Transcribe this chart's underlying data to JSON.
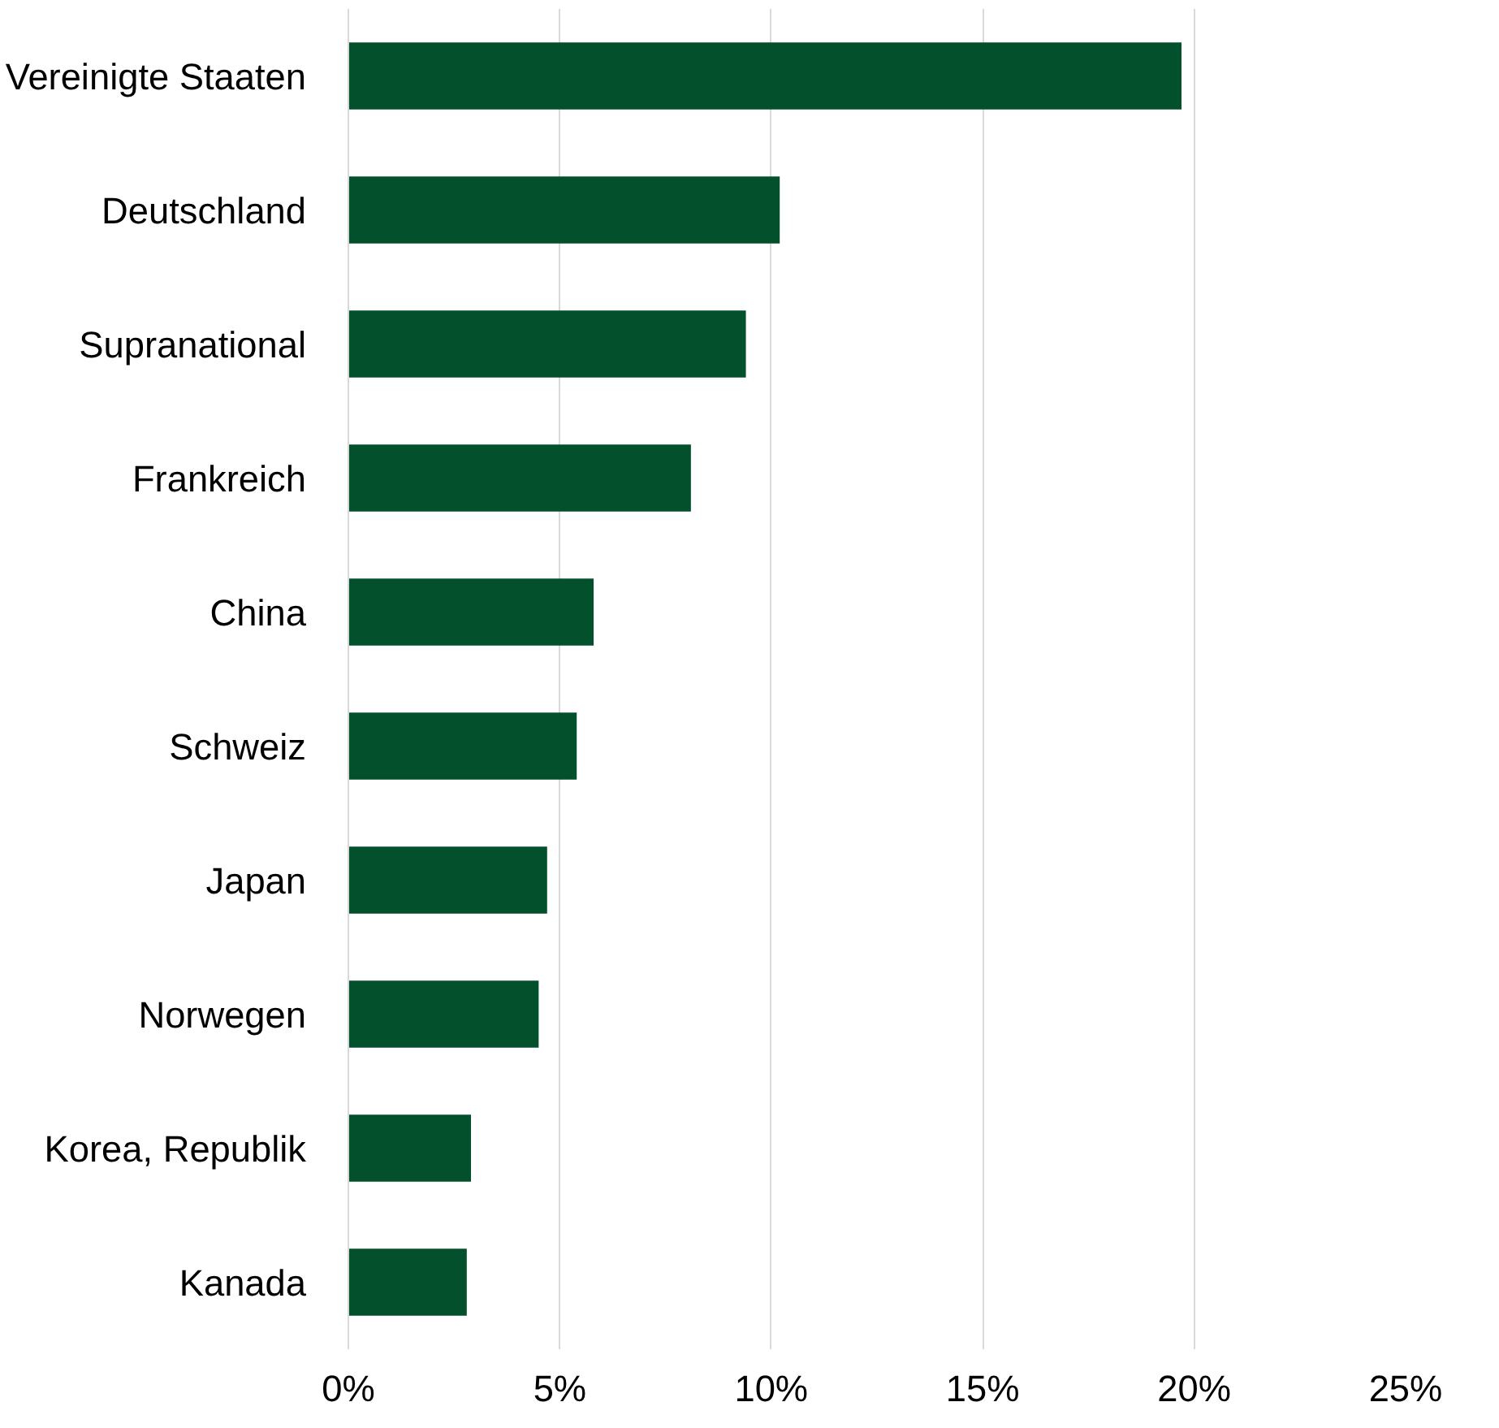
{
  "chart_data": {
    "type": "bar",
    "orientation": "horizontal",
    "categories": [
      "Vereinigte Staaten",
      "Deutschland",
      "Supranational",
      "Frankreich",
      "China",
      "Schweiz",
      "Japan",
      "Norwegen",
      "Korea, Republik",
      "Kanada"
    ],
    "values": [
      19.7,
      10.2,
      9.4,
      8.1,
      5.8,
      5.4,
      4.7,
      4.5,
      2.9,
      2.8
    ],
    "color": "#03502c",
    "xlim": [
      0,
      25
    ],
    "xticks": [
      {
        "value": 0,
        "label": "0%"
      },
      {
        "value": 5,
        "label": "5%"
      },
      {
        "value": 10,
        "label": "10%"
      },
      {
        "value": 15,
        "label": "15%"
      },
      {
        "value": 20,
        "label": "20%"
      },
      {
        "value": 25,
        "label": "25%"
      }
    ],
    "grid": "x"
  }
}
